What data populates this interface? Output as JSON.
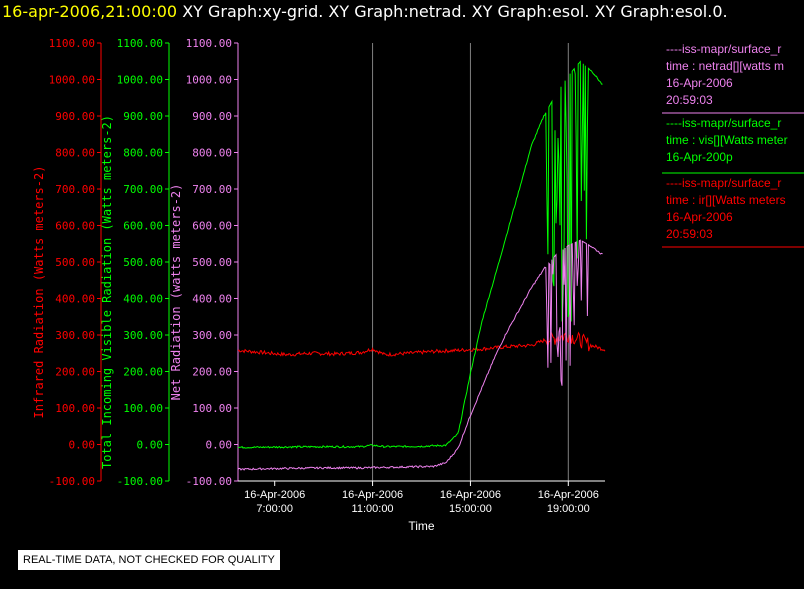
{
  "header": {
    "timestamp": "16-apr-2006,21:00:00",
    "graphs": "XY Graph:xy-grid.  XY Graph:netrad.  XY Graph:esol.  XY Graph:esol.0."
  },
  "notice": "REAL-TIME DATA, NOT CHECKED FOR QUALITY",
  "colors": {
    "background": "#000000",
    "ir": "#ff0000",
    "vis": "#00ff00",
    "netrad": "#ee82ee",
    "axis_text": "#ffffff",
    "grid": "#808080"
  },
  "legend": [
    {
      "line1": "----iss-mapr/surface_r",
      "line2": "time : netrad[][watts m",
      "line3": "16-Apr-2006",
      "line4": "20:59:03",
      "color": "#ee82ee"
    },
    {
      "line1": "----iss-mapr/surface_r",
      "line2": "time : vis[][Watts meter",
      "line3": "16-Apr-200p",
      "line4": "",
      "color": "#00ff00"
    },
    {
      "line1": "----iss-mapr/surface_r",
      "line2": "time : ir[][Watts meters",
      "line3": "16-Apr-2006",
      "line4": "20:59:03",
      "color": "#ff0000"
    }
  ],
  "chart_data": {
    "type": "line",
    "xlabel": "Time",
    "x_range_hours": [
      5.5,
      20.5
    ],
    "x_ticks": [
      {
        "hour": 7,
        "date": "16-Apr-2006",
        "time": "7:00:00"
      },
      {
        "hour": 11,
        "date": "16-Apr-2006",
        "time": "11:00:00"
      },
      {
        "hour": 15,
        "date": "16-Apr-2006",
        "time": "15:00:00"
      },
      {
        "hour": 19,
        "date": "16-Apr-2006",
        "time": "19:00:00"
      }
    ],
    "grid_hours": [
      11,
      15,
      19
    ],
    "y_axes": [
      {
        "id": "ir",
        "label": "Infrared Radiation (Watts meters-2)",
        "color": "#ff0000",
        "ylim": [
          -100,
          1100
        ],
        "ticks": [
          "1100.00",
          "1000.00",
          "900.00",
          "800.00",
          "700.00",
          "600.00",
          "500.00",
          "400.00",
          "300.00",
          "200.00",
          "100.00",
          "0.00",
          "-100.00"
        ]
      },
      {
        "id": "vis",
        "label": "Total Incoming Visible Radiation (Watts meters-2)",
        "color": "#00ff00",
        "ylim": [
          -100,
          1100
        ],
        "ticks": [
          "1100.00",
          "1000.00",
          "900.00",
          "800.00",
          "700.00",
          "600.00",
          "500.00",
          "400.00",
          "300.00",
          "200.00",
          "100.00",
          "0.00",
          "-100.00"
        ]
      },
      {
        "id": "netrad",
        "label": "Net Radiation (watts meters-2)",
        "color": "#ee82ee",
        "ylim": [
          -100,
          1100
        ],
        "ticks": [
          "1100.00",
          "1000.00",
          "900.00",
          "800.00",
          "700.00",
          "600.00",
          "500.00",
          "400.00",
          "300.00",
          "200.00",
          "100.00",
          "0.00",
          "-100.00"
        ]
      }
    ],
    "series": [
      {
        "id": "ir",
        "color": "#ff0000",
        "points": [
          [
            5.5,
            258
          ],
          [
            6.5,
            252
          ],
          [
            7.5,
            246
          ],
          [
            8.5,
            250
          ],
          [
            9.5,
            248
          ],
          [
            10.5,
            252
          ],
          [
            11,
            262
          ],
          [
            11.5,
            246
          ],
          [
            12.5,
            250
          ],
          [
            13.5,
            255
          ],
          [
            14.5,
            258
          ],
          [
            15.5,
            262
          ],
          [
            16.5,
            268
          ],
          [
            17.5,
            272
          ],
          [
            18,
            285
          ],
          [
            18.5,
            292
          ],
          [
            19,
            300
          ],
          [
            19.5,
            285
          ],
          [
            20,
            270
          ],
          [
            20.5,
            260
          ]
        ]
      },
      {
        "id": "vis",
        "color": "#00ff00",
        "points": [
          [
            5.5,
            -8
          ],
          [
            7,
            -7
          ],
          [
            9,
            -6
          ],
          [
            10.5,
            -6
          ],
          [
            11,
            -2
          ],
          [
            11.5,
            -6
          ],
          [
            13,
            -5
          ],
          [
            14,
            -2
          ],
          [
            14.5,
            30
          ],
          [
            15,
            195
          ],
          [
            15.5,
            345
          ],
          [
            16,
            460
          ],
          [
            16.5,
            580
          ],
          [
            17,
            700
          ],
          [
            17.5,
            820
          ],
          [
            18,
            900
          ],
          [
            18.5,
            960
          ],
          [
            19,
            1010
          ],
          [
            19.5,
            1050
          ],
          [
            20,
            1020
          ],
          [
            20.4,
            985
          ]
        ]
      },
      {
        "id": "netrad",
        "color": "#ee82ee",
        "points": [
          [
            5.5,
            -68
          ],
          [
            7,
            -66
          ],
          [
            9,
            -64
          ],
          [
            10.5,
            -64
          ],
          [
            12,
            -62
          ],
          [
            13.5,
            -60
          ],
          [
            14,
            -50
          ],
          [
            14.5,
            -10
          ],
          [
            15,
            80
          ],
          [
            15.5,
            160
          ],
          [
            16,
            240
          ],
          [
            16.5,
            310
          ],
          [
            17,
            370
          ],
          [
            17.5,
            430
          ],
          [
            18,
            480
          ],
          [
            18.5,
            520
          ],
          [
            19,
            545
          ],
          [
            19.5,
            560
          ],
          [
            20,
            540
          ],
          [
            20.4,
            520
          ]
        ]
      }
    ]
  }
}
